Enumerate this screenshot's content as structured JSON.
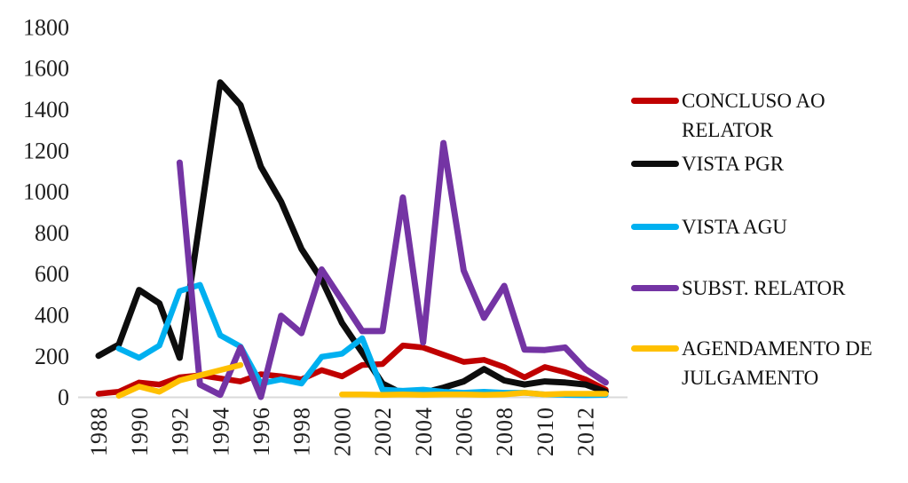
{
  "chart_data": {
    "type": "line",
    "title": "",
    "xlabel": "",
    "ylabel": "",
    "x": [
      1988,
      1989,
      1990,
      1991,
      1992,
      1993,
      1994,
      1995,
      1996,
      1997,
      1998,
      1999,
      2000,
      2001,
      2002,
      2003,
      2004,
      2005,
      2006,
      2007,
      2008,
      2009,
      2010,
      2011,
      2012,
      2013
    ],
    "x_tick_labels": [
      "1988",
      "1990",
      "1992",
      "1994",
      "1996",
      "1998",
      "2000",
      "2002",
      "2004",
      "2006",
      "2008",
      "2010",
      "2012"
    ],
    "y_ticks": [
      0,
      200,
      400,
      600,
      800,
      1000,
      1200,
      1400,
      1600,
      1800
    ],
    "ylim": [
      0,
      1800
    ],
    "grid": false,
    "legend_position": "right",
    "axis_color": "#d9d9d9",
    "tick_text_color": "#1f1f1f",
    "series": [
      {
        "name": "CONCLUSO AO RELATOR",
        "color": "#c00000",
        "stroke_width": 6.5,
        "values": [
          15,
          25,
          70,
          60,
          95,
          105,
          90,
          75,
          110,
          100,
          85,
          130,
          100,
          155,
          160,
          250,
          240,
          205,
          170,
          180,
          145,
          95,
          145,
          120,
          85,
          35
        ]
      },
      {
        "name": "VISTA PGR",
        "color": "#0d0d0d",
        "stroke_width": 7,
        "values": [
          200,
          255,
          520,
          455,
          190,
          860,
          1530,
          1420,
          1120,
          950,
          720,
          570,
          360,
          215,
          65,
          15,
          20,
          45,
          75,
          135,
          80,
          60,
          75,
          70,
          60,
          25
        ]
      },
      {
        "name": "VISTA AGU",
        "color": "#00b0f0",
        "stroke_width": 6.5,
        "values": [
          null,
          235,
          190,
          250,
          515,
          545,
          300,
          245,
          65,
          85,
          65,
          195,
          210,
          285,
          35,
          30,
          35,
          25,
          20,
          25,
          20,
          20,
          12,
          10,
          8,
          10
        ]
      },
      {
        "name": "SUBST. RELATOR",
        "color": "#7434a4",
        "stroke_width": 7,
        "values": [
          null,
          null,
          null,
          null,
          1140,
          60,
          10,
          240,
          0,
          395,
          310,
          620,
          470,
          320,
          320,
          970,
          265,
          1235,
          615,
          385,
          540,
          230,
          228,
          240,
          135,
          70
        ]
      },
      {
        "name": "AGENDAMENTO DE JULGAMENTO",
        "color": "#ffc000",
        "stroke_width": 6.5,
        "values": [
          null,
          5,
          50,
          25,
          80,
          105,
          130,
          155,
          null,
          null,
          null,
          null,
          12,
          12,
          10,
          12,
          10,
          12,
          12,
          10,
          12,
          20,
          12,
          15,
          15,
          15
        ]
      }
    ],
    "legend": [
      {
        "label": "CONCLUSO AO RELATOR",
        "color": "#c00000"
      },
      {
        "label": "VISTA PGR",
        "color": "#0d0d0d"
      },
      {
        "label": "VISTA AGU",
        "color": "#00b0f0"
      },
      {
        "label": "SUBST. RELATOR",
        "color": "#7434a4"
      },
      {
        "label": "AGENDAMENTO DE JULGAMENTO",
        "color": "#ffc000"
      }
    ]
  }
}
